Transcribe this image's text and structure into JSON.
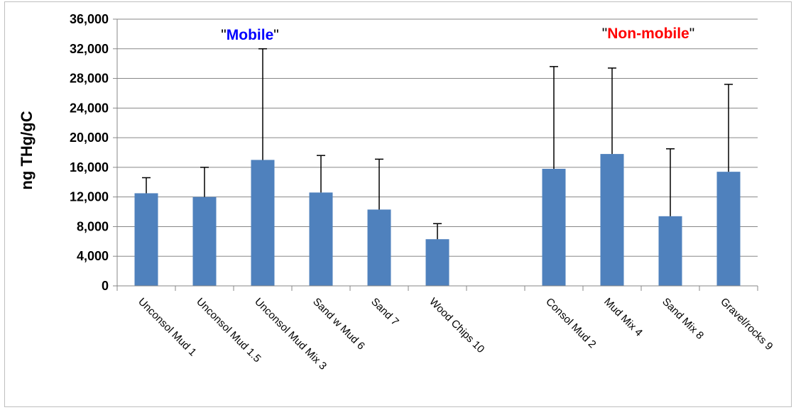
{
  "chart_data": {
    "type": "bar",
    "title": "",
    "xlabel": "",
    "ylabel": "ng THg/gC",
    "ylim": [
      0,
      36000
    ],
    "yticks": [
      0,
      4000,
      8000,
      12000,
      16000,
      20000,
      24000,
      28000,
      32000,
      36000
    ],
    "ytick_labels": [
      "0",
      "4,000",
      "8,000",
      "12,000",
      "16,000",
      "20,000",
      "24,000",
      "28,000",
      "32,000",
      "36,000"
    ],
    "grid": true,
    "categories": [
      "Unconsol Mud 1",
      "Unconsol Mud 1.5",
      "Unconsol Mud Mix 3",
      "Sand w Mud 6",
      "Sand 7",
      "Wood Chips 10",
      "",
      "Consol Mud 2",
      "Mud Mix 4",
      "Sand Mix 8",
      "Gravel/rocks 9"
    ],
    "values": [
      12500,
      12000,
      17000,
      12600,
      10300,
      6300,
      null,
      15800,
      17800,
      9400,
      15400
    ],
    "error_upper": [
      2100,
      4000,
      15000,
      5000,
      6800,
      2100,
      null,
      13800,
      11600,
      9100,
      11800
    ],
    "bar_color": "#4f81bd",
    "annotations": [
      {
        "prefix": "\"",
        "text": "Mobile",
        "suffix": "\"",
        "color": "#0000ff"
      },
      {
        "prefix": "\"",
        "text": "Non-mobile",
        "suffix": "\"",
        "color": "#ff0000"
      }
    ]
  }
}
